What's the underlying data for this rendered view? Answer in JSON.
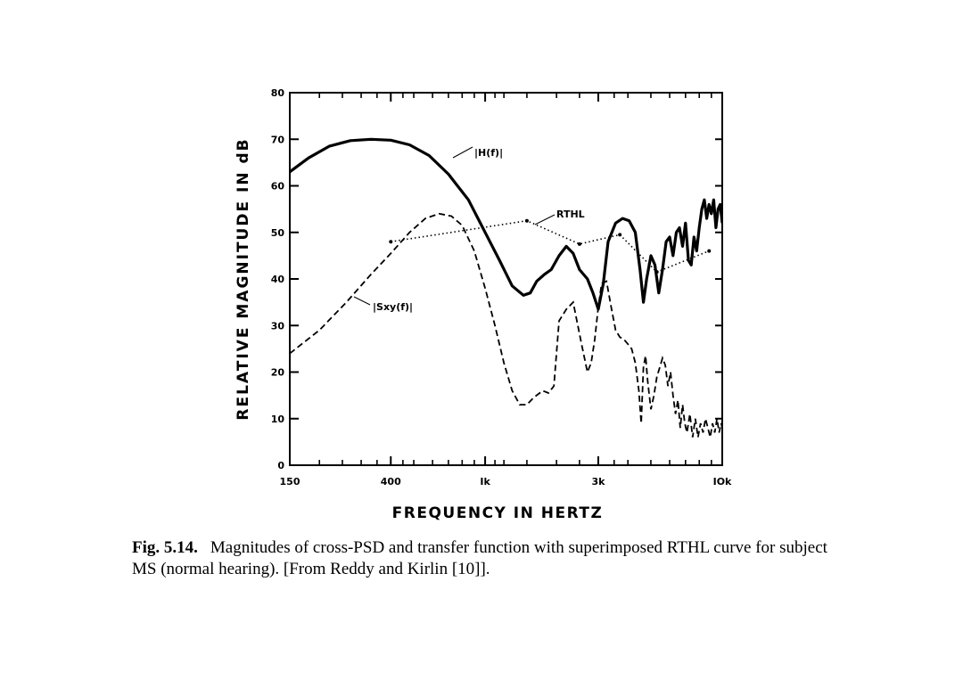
{
  "chart_data": {
    "type": "line",
    "xscale": "log",
    "xlabel": "FREQUENCY IN HERTZ",
    "ylabel": "RELATIVE MAGNITUDE IN dB",
    "xlim": [
      150,
      10000
    ],
    "ylim": [
      0,
      80
    ],
    "xtick_labels": [
      {
        "value": 150,
        "label": "150"
      },
      {
        "value": 400,
        "label": "400"
      },
      {
        "value": 1000,
        "label": "Ik"
      },
      {
        "value": 3000,
        "label": "3k"
      },
      {
        "value": 10000,
        "label": "IOk"
      }
    ],
    "ytick_labels": [
      {
        "value": 0,
        "label": "0"
      },
      {
        "value": 10,
        "label": "10"
      },
      {
        "value": 20,
        "label": "20"
      },
      {
        "value": 30,
        "label": "30"
      },
      {
        "value": 40,
        "label": "40"
      },
      {
        "value": 50,
        "label": "50"
      },
      {
        "value": 60,
        "label": "60"
      },
      {
        "value": 70,
        "label": "70"
      },
      {
        "value": 80,
        "label": "80"
      }
    ],
    "minor_xticks": [
      200,
      250,
      300,
      350,
      450,
      500,
      600,
      700,
      800,
      900,
      1100,
      1200,
      1500,
      2000,
      2500,
      3500,
      4000,
      5000,
      6000,
      7000,
      8000,
      9000
    ],
    "grid": false,
    "series": [
      {
        "name": "|H(f)|",
        "style": "solid-thick",
        "x": [
          150,
          180,
          220,
          270,
          330,
          400,
          480,
          580,
          700,
          850,
          1000,
          1150,
          1300,
          1450,
          1550,
          1650,
          1780,
          1900,
          2050,
          2200,
          2350,
          2500,
          2700,
          2850,
          3000,
          3150,
          3300,
          3550,
          3800,
          4050,
          4300,
          4500,
          4650,
          4800,
          5000,
          5200,
          5400,
          5600,
          5800,
          6000,
          6200,
          6400,
          6600,
          6800,
          7000,
          7200,
          7400,
          7600,
          7800,
          8000,
          8200,
          8400,
          8600,
          8800,
          9000,
          9200,
          9400,
          9600,
          9800,
          10000
        ],
        "values": [
          63,
          66,
          68.5,
          69.7,
          70,
          69.8,
          68.8,
          66.5,
          62.5,
          57,
          50,
          44,
          38.5,
          36.5,
          37,
          39.5,
          41,
          42,
          45,
          47,
          45.5,
          42,
          40,
          37,
          33.5,
          39,
          48,
          52,
          53,
          52.5,
          50,
          42,
          35,
          40,
          45,
          43,
          37,
          42,
          48,
          49,
          45,
          50,
          51,
          47,
          52,
          44,
          43,
          49,
          46,
          51,
          55,
          57,
          53,
          56,
          54,
          57,
          51,
          55,
          56,
          52
        ]
      },
      {
        "name": "|Sxy(f)|",
        "style": "dashed",
        "x": [
          150,
          200,
          260,
          330,
          400,
          480,
          560,
          640,
          720,
          800,
          900,
          1000,
          1100,
          1200,
          1300,
          1400,
          1500,
          1600,
          1750,
          1850,
          1950,
          2050,
          2200,
          2350,
          2550,
          2700,
          2800,
          2900,
          3000,
          3100,
          3250,
          3400,
          3550,
          3700,
          3850,
          4000,
          4150,
          4300,
          4450,
          4550,
          4650,
          4750,
          4850,
          5000,
          5150,
          5300,
          5450,
          5600,
          5750,
          5900,
          6050,
          6200,
          6350,
          6500,
          6650,
          6800,
          6950,
          7100,
          7300,
          7500,
          7700,
          7900,
          8100,
          8300,
          8500,
          8700,
          8900,
          9100,
          9300,
          9500,
          9700,
          9900,
          10000
        ],
        "values": [
          24,
          29,
          35,
          41,
          45.5,
          50,
          53,
          54,
          53.5,
          51.5,
          46,
          38,
          30,
          22,
          16,
          13,
          13,
          14.5,
          16,
          15.5,
          17,
          31,
          33.5,
          35,
          26,
          20,
          22,
          27,
          34,
          39,
          39.5,
          34,
          29,
          27.5,
          27,
          26,
          25,
          22,
          16,
          9,
          21,
          23.5,
          18,
          12,
          15,
          19,
          21,
          23,
          21.5,
          17,
          20,
          15,
          11,
          14,
          8,
          13,
          9,
          7,
          11,
          6,
          10,
          6,
          9,
          7,
          10,
          8,
          6,
          9,
          7,
          10,
          7,
          9,
          8
        ]
      },
      {
        "name": "RTHL",
        "style": "dotted",
        "x": [
          400,
          1500,
          2500,
          3700,
          5300,
          8800
        ],
        "values": [
          48,
          52.5,
          47.5,
          49.5,
          41.5,
          46
        ]
      }
    ],
    "annotations": [
      {
        "text": "|H(f)|",
        "series": "|H(f)|"
      },
      {
        "text": "RTHL",
        "series": "RTHL"
      },
      {
        "text": "|Sxy(f)|",
        "series": "|Sxy(f)|"
      }
    ]
  },
  "caption": {
    "figure_number": "Fig. 5.14.",
    "text": "Magnitudes of cross-PSD and transfer function with superimposed RTHL curve for subject MS (normal hearing). [From Reddy and Kirlin [10]]."
  }
}
